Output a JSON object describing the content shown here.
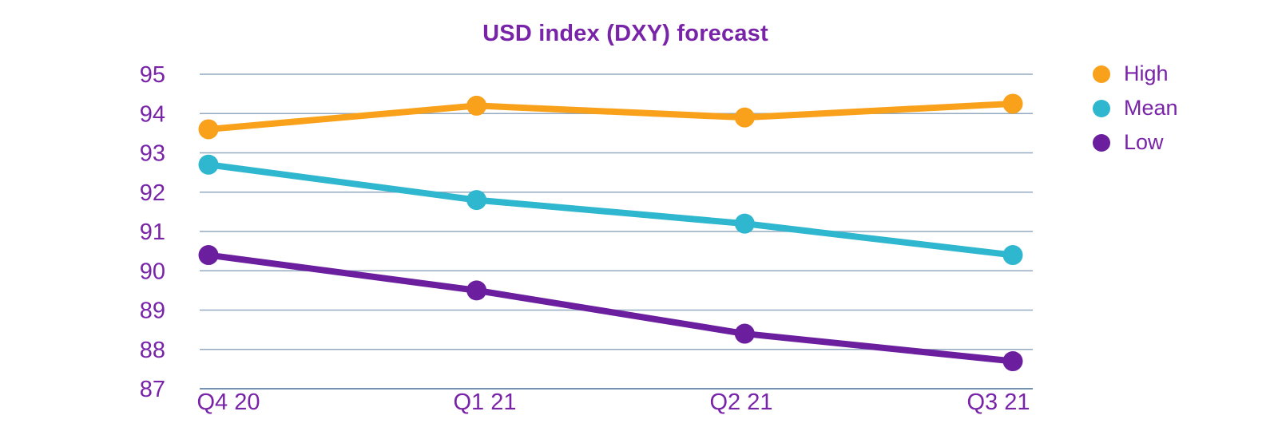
{
  "chart_data": {
    "type": "line",
    "title": "USD index (DXY) forecast",
    "categories": [
      "Q4 20",
      "Q1 21",
      "Q2 21",
      "Q3 21"
    ],
    "series": [
      {
        "name": "High",
        "color": "#F9A11B",
        "values": [
          93.6,
          94.2,
          93.9,
          94.25
        ]
      },
      {
        "name": "Mean",
        "color": "#2EB7CE",
        "values": [
          92.7,
          91.8,
          91.2,
          90.4
        ]
      },
      {
        "name": "Low",
        "color": "#6B1F9E",
        "values": [
          90.4,
          89.5,
          88.4,
          87.7
        ]
      }
    ],
    "yticks": [
      87,
      88,
      89,
      90,
      91,
      92,
      93,
      94,
      95
    ],
    "ylim": [
      87,
      95
    ],
    "grid": true,
    "legend_position": "right",
    "text_color": "#7823A8",
    "gridline_color": "#93AAC1",
    "axisline_color": "#7493B3"
  }
}
